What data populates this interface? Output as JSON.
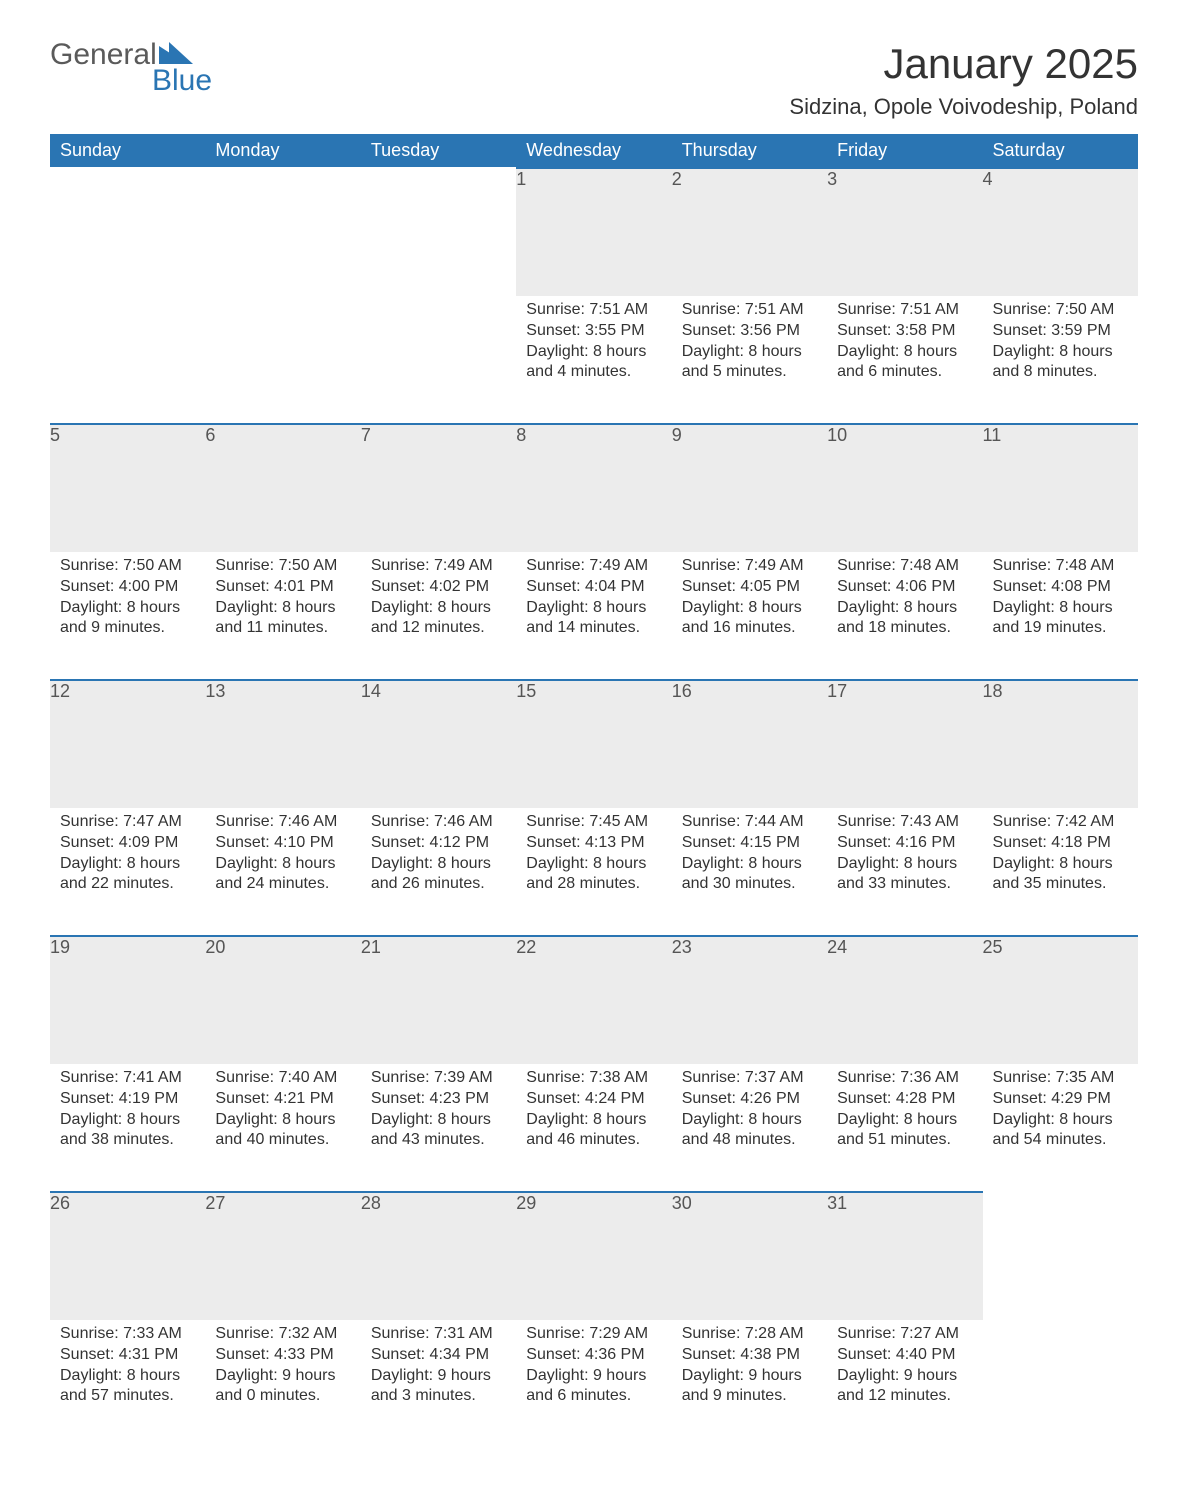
{
  "logo": {
    "text_general": "General",
    "text_blue": "Blue",
    "color_gray": "#5a5a5a",
    "color_blue": "#2a75b3"
  },
  "title": "January 2025",
  "location": "Sidzina, Opole Voivodeship, Poland",
  "calendar": {
    "header_bg": "#2a75b3",
    "header_fg": "#ffffff",
    "daynum_bg": "#ececec",
    "daynum_border": "#2a75b3",
    "text_color": "#333333",
    "font_size_body": 16,
    "font_size_header": 18,
    "font_size_title": 42,
    "font_size_location": 22,
    "columns": [
      "Sunday",
      "Monday",
      "Tuesday",
      "Wednesday",
      "Thursday",
      "Friday",
      "Saturday"
    ],
    "weeks": [
      [
        null,
        null,
        null,
        {
          "day": "1",
          "sunrise": "Sunrise: 7:51 AM",
          "sunset": "Sunset: 3:55 PM",
          "dl1": "Daylight: 8 hours",
          "dl2": "and 4 minutes."
        },
        {
          "day": "2",
          "sunrise": "Sunrise: 7:51 AM",
          "sunset": "Sunset: 3:56 PM",
          "dl1": "Daylight: 8 hours",
          "dl2": "and 5 minutes."
        },
        {
          "day": "3",
          "sunrise": "Sunrise: 7:51 AM",
          "sunset": "Sunset: 3:58 PM",
          "dl1": "Daylight: 8 hours",
          "dl2": "and 6 minutes."
        },
        {
          "day": "4",
          "sunrise": "Sunrise: 7:50 AM",
          "sunset": "Sunset: 3:59 PM",
          "dl1": "Daylight: 8 hours",
          "dl2": "and 8 minutes."
        }
      ],
      [
        {
          "day": "5",
          "sunrise": "Sunrise: 7:50 AM",
          "sunset": "Sunset: 4:00 PM",
          "dl1": "Daylight: 8 hours",
          "dl2": "and 9 minutes."
        },
        {
          "day": "6",
          "sunrise": "Sunrise: 7:50 AM",
          "sunset": "Sunset: 4:01 PM",
          "dl1": "Daylight: 8 hours",
          "dl2": "and 11 minutes."
        },
        {
          "day": "7",
          "sunrise": "Sunrise: 7:49 AM",
          "sunset": "Sunset: 4:02 PM",
          "dl1": "Daylight: 8 hours",
          "dl2": "and 12 minutes."
        },
        {
          "day": "8",
          "sunrise": "Sunrise: 7:49 AM",
          "sunset": "Sunset: 4:04 PM",
          "dl1": "Daylight: 8 hours",
          "dl2": "and 14 minutes."
        },
        {
          "day": "9",
          "sunrise": "Sunrise: 7:49 AM",
          "sunset": "Sunset: 4:05 PM",
          "dl1": "Daylight: 8 hours",
          "dl2": "and 16 minutes."
        },
        {
          "day": "10",
          "sunrise": "Sunrise: 7:48 AM",
          "sunset": "Sunset: 4:06 PM",
          "dl1": "Daylight: 8 hours",
          "dl2": "and 18 minutes."
        },
        {
          "day": "11",
          "sunrise": "Sunrise: 7:48 AM",
          "sunset": "Sunset: 4:08 PM",
          "dl1": "Daylight: 8 hours",
          "dl2": "and 19 minutes."
        }
      ],
      [
        {
          "day": "12",
          "sunrise": "Sunrise: 7:47 AM",
          "sunset": "Sunset: 4:09 PM",
          "dl1": "Daylight: 8 hours",
          "dl2": "and 22 minutes."
        },
        {
          "day": "13",
          "sunrise": "Sunrise: 7:46 AM",
          "sunset": "Sunset: 4:10 PM",
          "dl1": "Daylight: 8 hours",
          "dl2": "and 24 minutes."
        },
        {
          "day": "14",
          "sunrise": "Sunrise: 7:46 AM",
          "sunset": "Sunset: 4:12 PM",
          "dl1": "Daylight: 8 hours",
          "dl2": "and 26 minutes."
        },
        {
          "day": "15",
          "sunrise": "Sunrise: 7:45 AM",
          "sunset": "Sunset: 4:13 PM",
          "dl1": "Daylight: 8 hours",
          "dl2": "and 28 minutes."
        },
        {
          "day": "16",
          "sunrise": "Sunrise: 7:44 AM",
          "sunset": "Sunset: 4:15 PM",
          "dl1": "Daylight: 8 hours",
          "dl2": "and 30 minutes."
        },
        {
          "day": "17",
          "sunrise": "Sunrise: 7:43 AM",
          "sunset": "Sunset: 4:16 PM",
          "dl1": "Daylight: 8 hours",
          "dl2": "and 33 minutes."
        },
        {
          "day": "18",
          "sunrise": "Sunrise: 7:42 AM",
          "sunset": "Sunset: 4:18 PM",
          "dl1": "Daylight: 8 hours",
          "dl2": "and 35 minutes."
        }
      ],
      [
        {
          "day": "19",
          "sunrise": "Sunrise: 7:41 AM",
          "sunset": "Sunset: 4:19 PM",
          "dl1": "Daylight: 8 hours",
          "dl2": "and 38 minutes."
        },
        {
          "day": "20",
          "sunrise": "Sunrise: 7:40 AM",
          "sunset": "Sunset: 4:21 PM",
          "dl1": "Daylight: 8 hours",
          "dl2": "and 40 minutes."
        },
        {
          "day": "21",
          "sunrise": "Sunrise: 7:39 AM",
          "sunset": "Sunset: 4:23 PM",
          "dl1": "Daylight: 8 hours",
          "dl2": "and 43 minutes."
        },
        {
          "day": "22",
          "sunrise": "Sunrise: 7:38 AM",
          "sunset": "Sunset: 4:24 PM",
          "dl1": "Daylight: 8 hours",
          "dl2": "and 46 minutes."
        },
        {
          "day": "23",
          "sunrise": "Sunrise: 7:37 AM",
          "sunset": "Sunset: 4:26 PM",
          "dl1": "Daylight: 8 hours",
          "dl2": "and 48 minutes."
        },
        {
          "day": "24",
          "sunrise": "Sunrise: 7:36 AM",
          "sunset": "Sunset: 4:28 PM",
          "dl1": "Daylight: 8 hours",
          "dl2": "and 51 minutes."
        },
        {
          "day": "25",
          "sunrise": "Sunrise: 7:35 AM",
          "sunset": "Sunset: 4:29 PM",
          "dl1": "Daylight: 8 hours",
          "dl2": "and 54 minutes."
        }
      ],
      [
        {
          "day": "26",
          "sunrise": "Sunrise: 7:33 AM",
          "sunset": "Sunset: 4:31 PM",
          "dl1": "Daylight: 8 hours",
          "dl2": "and 57 minutes."
        },
        {
          "day": "27",
          "sunrise": "Sunrise: 7:32 AM",
          "sunset": "Sunset: 4:33 PM",
          "dl1": "Daylight: 9 hours",
          "dl2": "and 0 minutes."
        },
        {
          "day": "28",
          "sunrise": "Sunrise: 7:31 AM",
          "sunset": "Sunset: 4:34 PM",
          "dl1": "Daylight: 9 hours",
          "dl2": "and 3 minutes."
        },
        {
          "day": "29",
          "sunrise": "Sunrise: 7:29 AM",
          "sunset": "Sunset: 4:36 PM",
          "dl1": "Daylight: 9 hours",
          "dl2": "and 6 minutes."
        },
        {
          "day": "30",
          "sunrise": "Sunrise: 7:28 AM",
          "sunset": "Sunset: 4:38 PM",
          "dl1": "Daylight: 9 hours",
          "dl2": "and 9 minutes."
        },
        {
          "day": "31",
          "sunrise": "Sunrise: 7:27 AM",
          "sunset": "Sunset: 4:40 PM",
          "dl1": "Daylight: 9 hours",
          "dl2": "and 12 minutes."
        },
        null
      ]
    ]
  }
}
